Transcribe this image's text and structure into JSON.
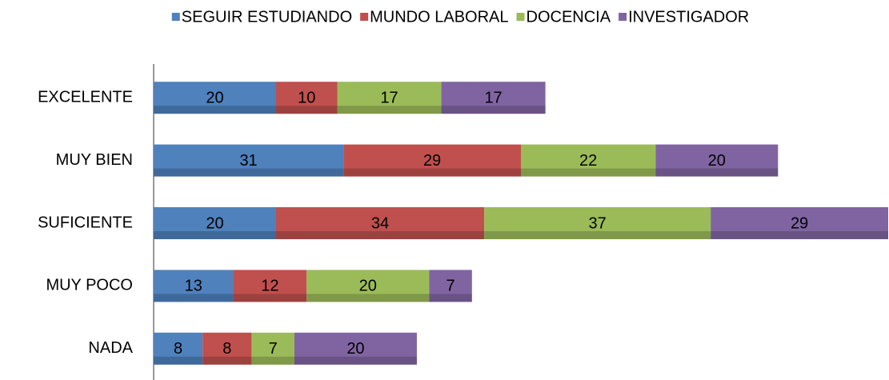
{
  "chart_data": {
    "type": "stacked-barh",
    "categories": [
      "EXCELENTE",
      "MUY BIEN",
      "SUFICIENTE",
      "MUY POCO",
      "NADA"
    ],
    "series": [
      {
        "name": "SEGUIR ESTUDIANDO",
        "color": "#4f81bd",
        "values": [
          20,
          31,
          20,
          13,
          8
        ]
      },
      {
        "name": "MUNDO LABORAL",
        "color": "#c0504d",
        "values": [
          10,
          29,
          34,
          12,
          8
        ]
      },
      {
        "name": "DOCENCIA",
        "color": "#9bbb59",
        "values": [
          17,
          22,
          37,
          20,
          7
        ]
      },
      {
        "name": "INVESTIGADOR",
        "color": "#8064a2",
        "values": [
          17,
          20,
          29,
          7,
          20
        ]
      }
    ],
    "xlim": [
      0,
      120
    ],
    "legend": "top"
  }
}
